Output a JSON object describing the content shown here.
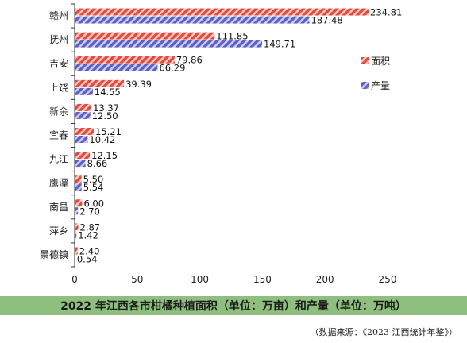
{
  "chart_data": {
    "type": "bar",
    "orientation": "horizontal",
    "categories": [
      "赣州",
      "抚州",
      "吉安",
      "上饶",
      "新余",
      "宜春",
      "九江",
      "鹰潭",
      "南昌",
      "萍乡",
      "景德镇"
    ],
    "series": [
      {
        "name": "面积",
        "values": [
          234.81,
          111.85,
          79.86,
          39.39,
          13.37,
          15.21,
          12.15,
          5.5,
          6.0,
          2.87,
          2.4
        ],
        "labels": [
          "234.81",
          "111.85",
          "79.86",
          "39.39",
          "13.37",
          "15.21",
          "12.15",
          "5.50",
          "6.00",
          "2.87",
          "2.40"
        ],
        "color": "#e8473a"
      },
      {
        "name": "产量",
        "values": [
          187.48,
          149.71,
          66.29,
          14.55,
          12.5,
          10.42,
          8.66,
          5.54,
          2.7,
          1.42,
          0.54
        ],
        "labels": [
          "187.48",
          "149.71",
          "66.29",
          "14.55",
          "12.50",
          "10.42",
          "8.66",
          "5.54",
          "2.70",
          "1.42",
          "0.54"
        ],
        "color": "#5b5fc7"
      }
    ],
    "xlim": [
      0,
      250
    ],
    "xticks": [
      "0",
      "50",
      "100",
      "150",
      "200",
      "250"
    ],
    "grid": false,
    "legend_position": "right"
  },
  "caption": "2022 年江西各市柑橘种植面积（单位：万亩）和产量（单位：万吨）",
  "source": "（数据来源：《2023 江西统计年鉴》）"
}
